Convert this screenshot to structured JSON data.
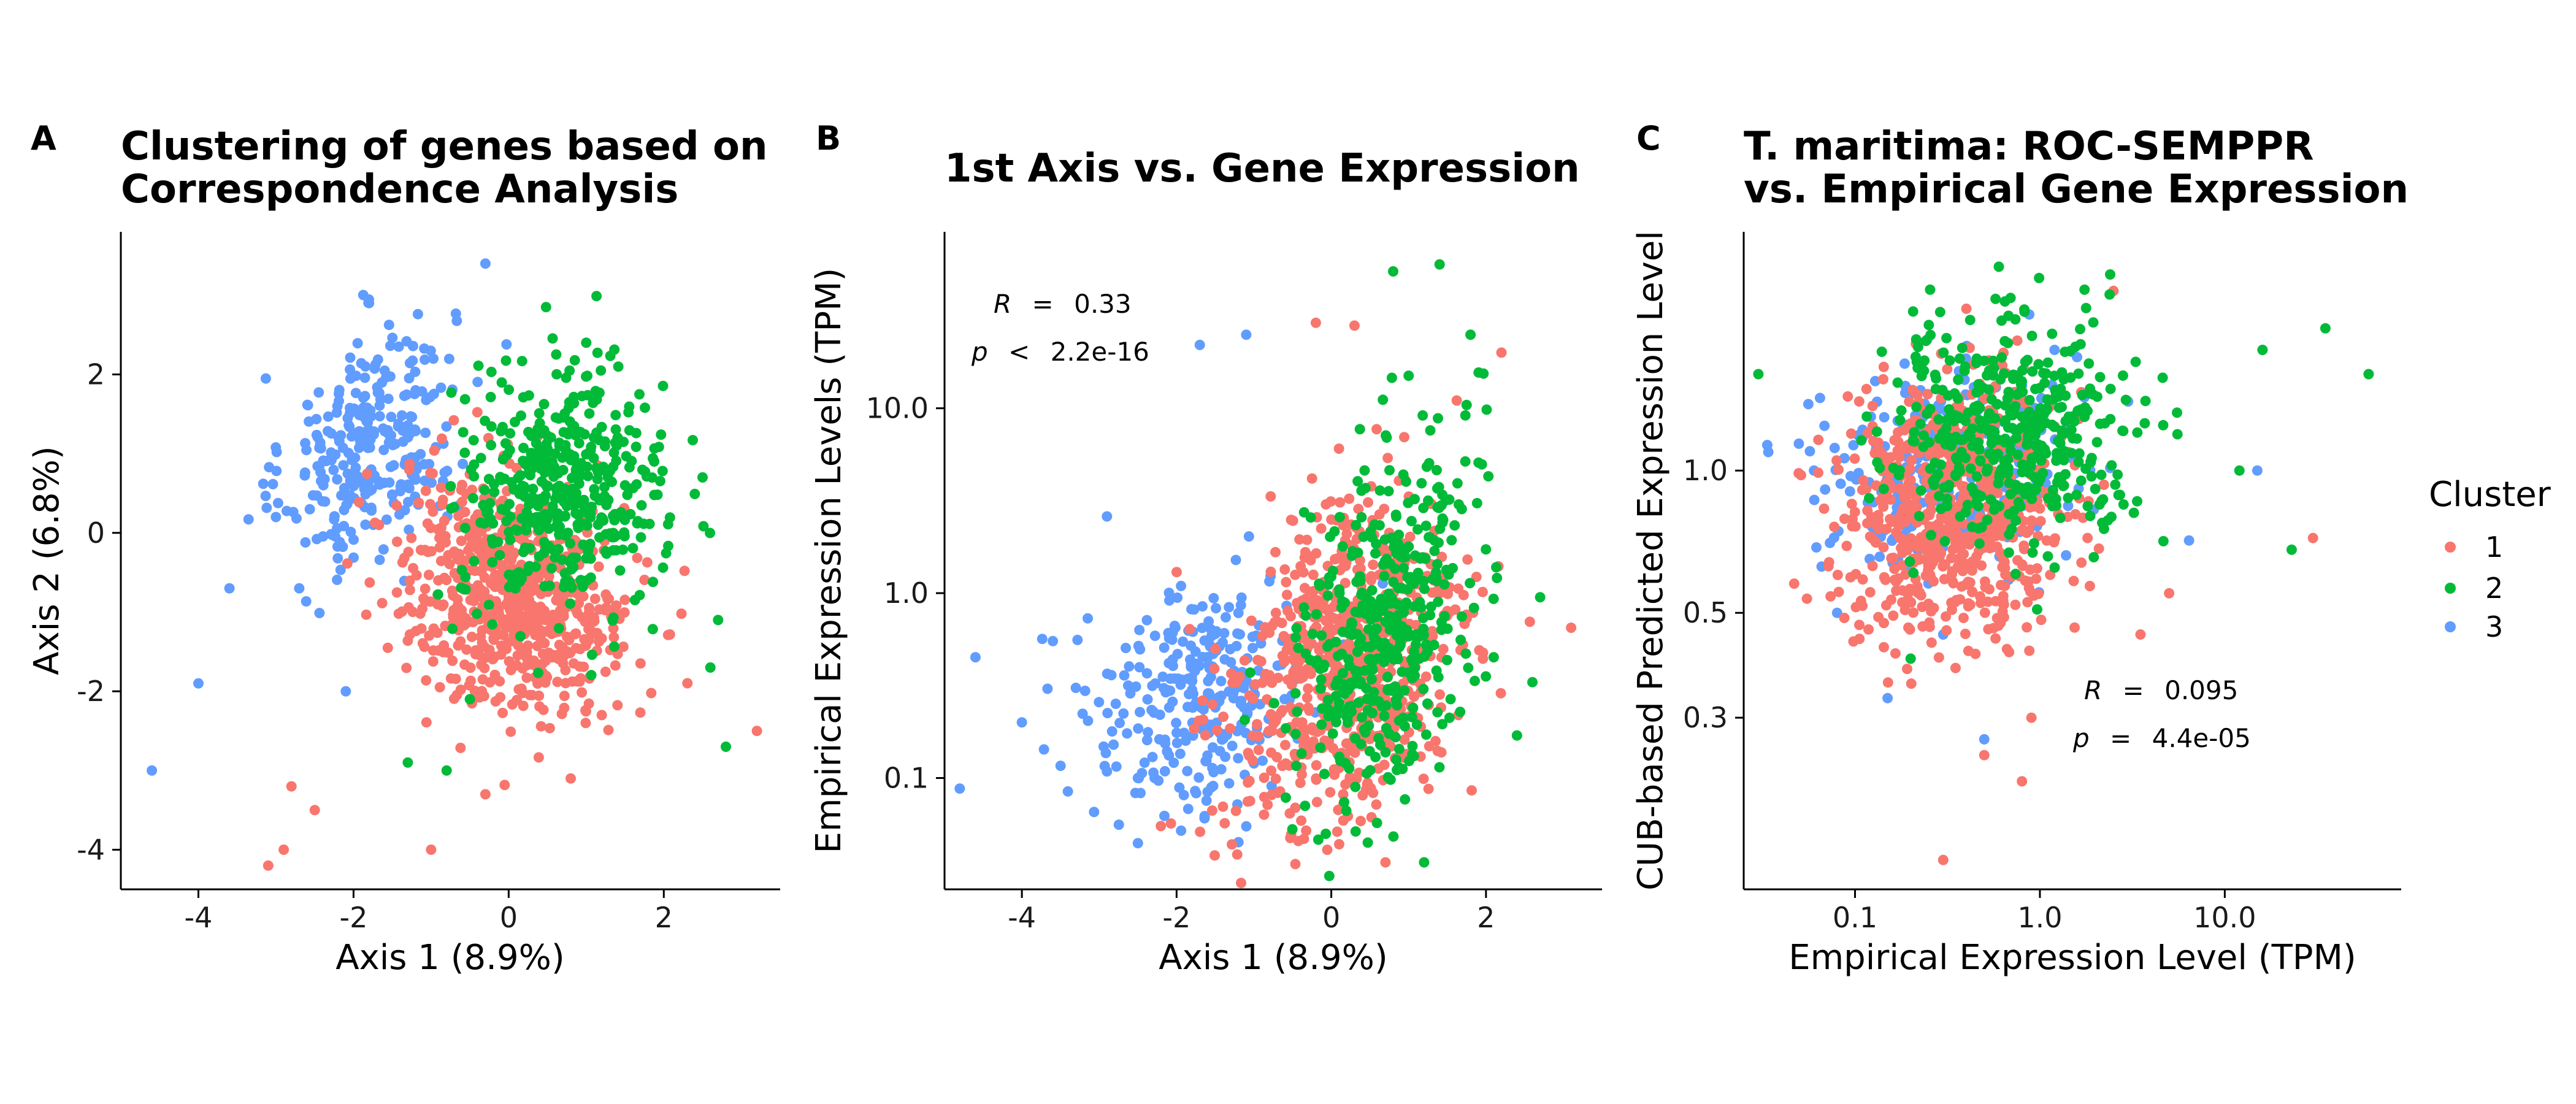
{
  "colors": {
    "cluster_1": "#F8766D",
    "cluster_2": "#00BA38",
    "cluster_3": "#619CFF"
  },
  "legend": {
    "title": "Cluster",
    "entries": [
      {
        "label": "1",
        "color": "#F8766D"
      },
      {
        "label": "2",
        "color": "#00BA38"
      },
      {
        "label": "3",
        "color": "#619CFF"
      }
    ]
  },
  "chart_data": [
    {
      "panel": "A",
      "type": "scatter",
      "title_line1": "Clustering of genes based on",
      "title_line2": "Correspondence Analysis",
      "xlabel": "Axis 1 (8.9%)",
      "ylabel": "Axis 2 (6.8%)",
      "xscale": "linear",
      "yscale": "linear",
      "xlim": [
        -5.0,
        3.5
      ],
      "ylim": [
        -4.5,
        3.8
      ],
      "xticks": [
        {
          "value": -4,
          "label": "-4"
        },
        {
          "value": -2,
          "label": "-2"
        },
        {
          "value": 0,
          "label": "0"
        },
        {
          "value": 2,
          "label": "2"
        }
      ],
      "yticks": [
        {
          "value": -4,
          "label": "-4"
        },
        {
          "value": -2,
          "label": "-2"
        },
        {
          "value": 0,
          "label": "0"
        },
        {
          "value": 2,
          "label": "2"
        }
      ],
      "grid": false,
      "series": [
        {
          "name": "1",
          "cluster": 1,
          "n_points": 700,
          "sample_points": [
            [
              0.0,
              -0.8
            ],
            [
              -1.0,
              -4.0
            ],
            [
              -3.1,
              -4.2
            ],
            [
              -2.9,
              -4.0
            ],
            [
              -0.3,
              -3.3
            ],
            [
              0.8,
              -3.1
            ],
            [
              3.2,
              -2.5
            ],
            [
              1.2,
              -2.3
            ],
            [
              -2.8,
              -3.2
            ],
            [
              -2.5,
              -3.5
            ]
          ]
        },
        {
          "name": "2",
          "cluster": 2,
          "n_points": 450,
          "sample_points": [
            [
              0.6,
              1.0
            ],
            [
              2.8,
              -2.7
            ],
            [
              2.5,
              0.7
            ],
            [
              1.0,
              2.4
            ],
            [
              -1.3,
              -2.9
            ],
            [
              -0.8,
              -3.0
            ],
            [
              2.6,
              -1.7
            ],
            [
              2.7,
              -1.1
            ],
            [
              1.5,
              0.6
            ],
            [
              -0.5,
              -2.1
            ]
          ]
        },
        {
          "name": "3",
          "cluster": 3,
          "n_points": 300,
          "sample_points": [
            [
              -1.8,
              1.3
            ],
            [
              -0.3,
              3.4
            ],
            [
              -4.6,
              -3.0
            ],
            [
              -4.0,
              -1.9
            ],
            [
              -1.8,
              2.9
            ],
            [
              -3.6,
              -0.7
            ],
            [
              -2.7,
              -0.7
            ],
            [
              -2.1,
              -2.0
            ],
            [
              -3.0,
              0.2
            ],
            [
              -1.2,
              1.8
            ]
          ]
        }
      ]
    },
    {
      "panel": "B",
      "type": "scatter",
      "title_line1": "1st Axis vs. Gene Expression",
      "xlabel": "Axis 1 (8.9%)",
      "ylabel": "Empirical Expression Levels (TPM)",
      "xscale": "linear",
      "yscale": "log10",
      "xlim": [
        -5.0,
        3.5
      ],
      "ylim": [
        0.025,
        90
      ],
      "xticks": [
        {
          "value": -4,
          "label": "-4"
        },
        {
          "value": -2,
          "label": "-2"
        },
        {
          "value": 0,
          "label": "0"
        },
        {
          "value": 2,
          "label": "2"
        }
      ],
      "yticks": [
        {
          "value": 0.1,
          "label": "0.1"
        },
        {
          "value": 1.0,
          "label": "1.0"
        },
        {
          "value": 10.0,
          "label": "10.0"
        }
      ],
      "annotations": [
        {
          "symbol": "R",
          "op": "=",
          "value": "0.33"
        },
        {
          "symbol": "p",
          "op": "<",
          "value": "2.2e-16"
        }
      ],
      "grid": false,
      "series": [
        {
          "name": "1",
          "cluster": 1,
          "n_points": 700,
          "sample_points": [
            [
              0.4,
              0.4
            ],
            [
              0.3,
              28
            ],
            [
              2.2,
              20
            ],
            [
              3.1,
              0.65
            ],
            [
              -2.0,
              1.3
            ],
            [
              0.7,
              0.035
            ],
            [
              -1.4,
              0.07
            ],
            [
              1.5,
              0.8
            ],
            [
              -0.2,
              29
            ],
            [
              0.0,
              2.5
            ]
          ]
        },
        {
          "name": "2",
          "cluster": 2,
          "n_points": 450,
          "sample_points": [
            [
              0.7,
              0.7
            ],
            [
              1.4,
              60
            ],
            [
              0.8,
              55
            ],
            [
              2.1,
              0.45
            ],
            [
              1.2,
              0.035
            ],
            [
              2.6,
              0.33
            ],
            [
              2.7,
              0.95
            ],
            [
              2.4,
              0.17
            ],
            [
              1.8,
              25
            ],
            [
              1.0,
              15
            ]
          ]
        },
        {
          "name": "3",
          "cluster": 3,
          "n_points": 300,
          "sample_points": [
            [
              -1.8,
              0.3
            ],
            [
              -4.6,
              0.45
            ],
            [
              -4.0,
              0.2
            ],
            [
              -1.1,
              25
            ],
            [
              -2.9,
              2.6
            ],
            [
              -3.6,
              0.55
            ],
            [
              -1.2,
              0.045
            ],
            [
              -1.7,
              22
            ],
            [
              -2.5,
              0.1
            ],
            [
              -1.0,
              0.12
            ]
          ]
        }
      ]
    },
    {
      "panel": "C",
      "type": "scatter",
      "title_line1": "T. maritima: ROC-SEMPPR",
      "title_line2": "vs. Empirical Gene Expression",
      "xlabel": "Empirical Expression Level (TPM)",
      "ylabel": "CUB-based Predicted Expression Level",
      "xscale": "log10",
      "yscale": "log10",
      "xlim": [
        0.025,
        90
      ],
      "ylim": [
        0.13,
        3.2
      ],
      "xticks": [
        {
          "value": 0.1,
          "label": "0.1"
        },
        {
          "value": 1.0,
          "label": "1.0"
        },
        {
          "value": 10.0,
          "label": "10.0"
        }
      ],
      "yticks": [
        {
          "value": 0.3,
          "label": "0.3"
        },
        {
          "value": 0.5,
          "label": "0.5"
        },
        {
          "value": 1.0,
          "label": "1.0"
        }
      ],
      "annotations": [
        {
          "symbol": "R",
          "op": "=",
          "value": "0.095"
        },
        {
          "symbol": "p",
          "op": "=",
          "value": "4.4e-05"
        }
      ],
      "grid": false,
      "series": [
        {
          "name": "1",
          "cluster": 1,
          "n_points": 700,
          "sample_points": [
            [
              0.4,
              0.9
            ],
            [
              0.3,
              0.15
            ],
            [
              0.8,
              0.22
            ],
            [
              30,
              0.72
            ],
            [
              3.5,
              0.45
            ],
            [
              0.5,
              0.25
            ],
            [
              0.9,
              0.3
            ],
            [
              5.0,
              0.55
            ],
            [
              2.5,
              2.4
            ],
            [
              0.4,
              2.2
            ]
          ]
        },
        {
          "name": "2",
          "cluster": 2,
          "n_points": 450,
          "sample_points": [
            [
              0.8,
              1.3
            ],
            [
              0.03,
              1.6
            ],
            [
              60,
              1.6
            ],
            [
              35,
              2.0
            ],
            [
              23,
              0.68
            ],
            [
              2.4,
              2.6
            ],
            [
              0.6,
              2.7
            ],
            [
              0.2,
              0.4
            ],
            [
              12,
              1.0
            ],
            [
              16,
              1.8
            ]
          ]
        },
        {
          "name": "3",
          "cluster": 3,
          "n_points": 300,
          "sample_points": [
            [
              0.4,
              1.1
            ],
            [
              0.5,
              0.27
            ],
            [
              0.15,
              0.33
            ],
            [
              0.06,
              1.0
            ],
            [
              0.08,
              0.5
            ],
            [
              15,
              1.0
            ],
            [
              3.0,
              1.4
            ],
            [
              0.3,
              0.45
            ],
            [
              0.12,
              0.65
            ],
            [
              1.2,
              1.8
            ]
          ]
        }
      ]
    }
  ],
  "panels": {
    "A": {
      "letter": "A"
    },
    "B": {
      "letter": "B"
    },
    "C": {
      "letter": "C"
    }
  }
}
